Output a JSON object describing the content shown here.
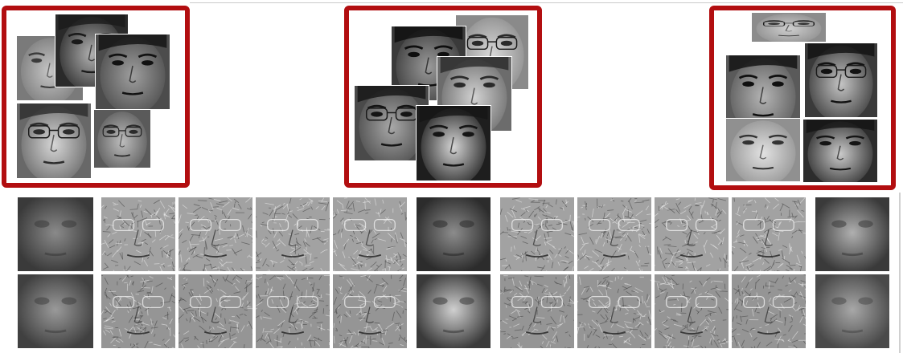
{
  "face_groups": [
    {
      "faces": [
        "face-1",
        "face-2",
        "face-3",
        "face-4",
        "face-5"
      ]
    },
    {
      "faces": [
        "face-1",
        "face-2",
        "face-3",
        "face-4",
        "face-5"
      ]
    },
    {
      "faces": [
        "face-1",
        "face-2",
        "face-3",
        "face-4",
        "face-5"
      ]
    }
  ],
  "palette": {
    "frame": "#b20e10",
    "skin_dark": "#3a3a3a",
    "skin_mid": "#8a8a8a",
    "skin_light": "#cfcfcf",
    "residual": "#9a9a9a"
  },
  "filter_rows": 2,
  "filter_columns": 11
}
